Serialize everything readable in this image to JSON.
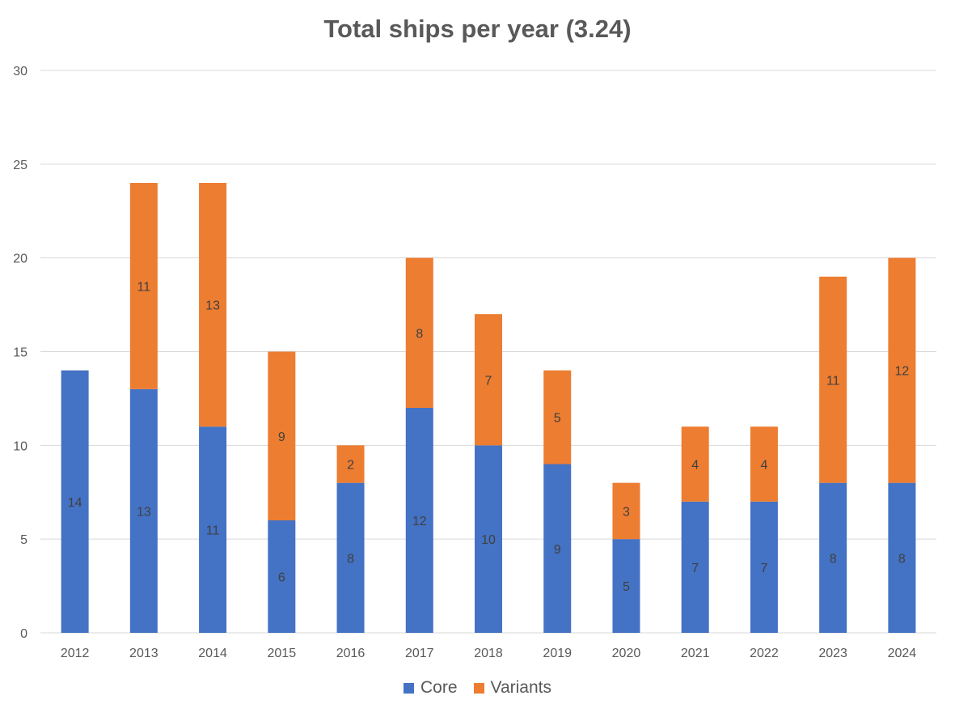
{
  "chart_data": {
    "type": "bar",
    "stacked": true,
    "title": "Total ships per year (3.24)",
    "xlabel": "",
    "ylabel": "",
    "ylim": [
      0,
      30
    ],
    "yticks": [
      0,
      5,
      10,
      15,
      20,
      25,
      30
    ],
    "grid": true,
    "legend_position": "bottom",
    "categories": [
      "2012",
      "2013",
      "2014",
      "2015",
      "2016",
      "2017",
      "2018",
      "2019",
      "2020",
      "2021",
      "2022",
      "2023",
      "2024"
    ],
    "series": [
      {
        "name": "Core",
        "color": "#4472C4",
        "values": [
          14,
          13,
          11,
          6,
          8,
          12,
          10,
          9,
          5,
          7,
          7,
          8,
          8
        ],
        "labels": [
          "14",
          "13",
          "11",
          "6",
          "8",
          "12",
          "10",
          "9",
          "5",
          "7",
          "7",
          "8",
          "8"
        ]
      },
      {
        "name": "Variants",
        "color": "#ED7D31",
        "values": [
          0,
          11,
          13,
          9,
          2,
          8,
          7,
          5,
          3,
          4,
          4,
          11,
          12
        ],
        "labels": [
          "",
          "11",
          "13",
          "9",
          "2",
          "8",
          "7",
          "5",
          "3",
          "4",
          "4",
          "11",
          "12"
        ]
      }
    ]
  }
}
